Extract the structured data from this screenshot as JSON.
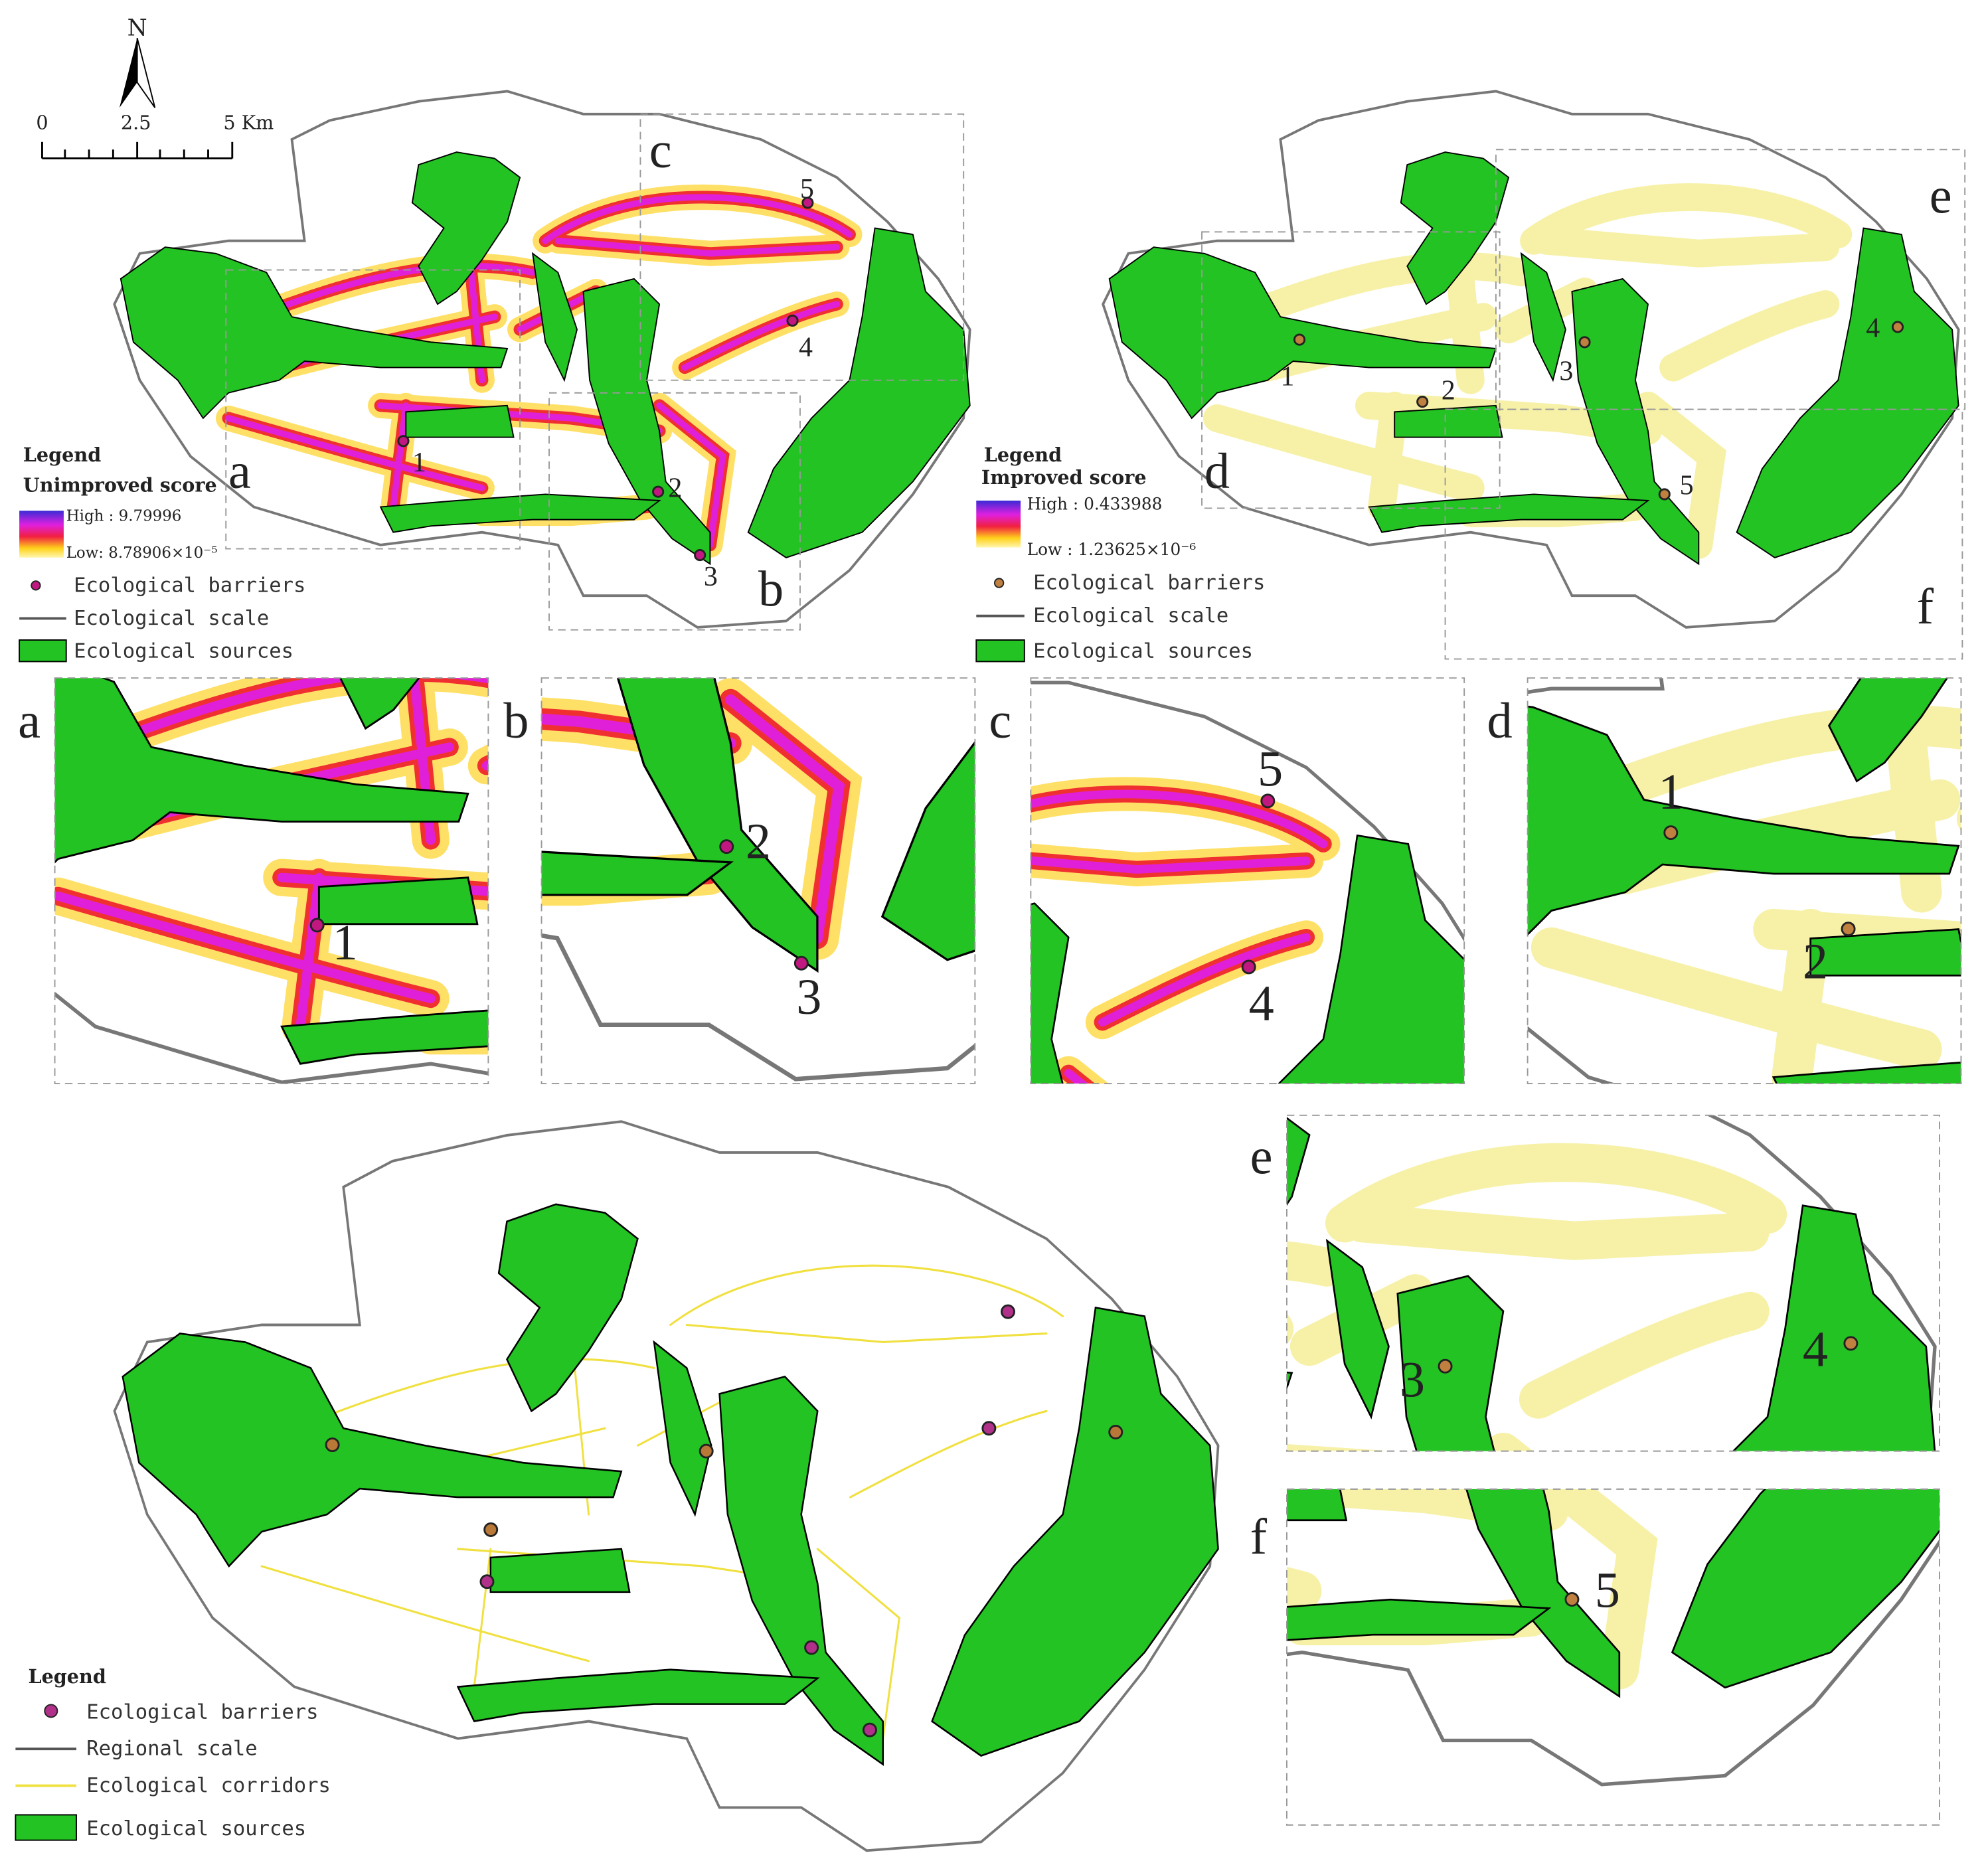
{
  "scale_bar": {
    "north": "N",
    "ticks": [
      "0",
      "2.5",
      "5 Km"
    ]
  },
  "maps": [
    {
      "panel_labels": [
        "a",
        "b",
        "c"
      ],
      "barrier_labels": [
        "1",
        "2",
        "3",
        "4",
        "5"
      ],
      "legend": {
        "title": "Legend",
        "score": "Unimproved score",
        "high": "High : 9.79996",
        "low": "Low: 8.78906×10⁻⁵",
        "items": [
          "Ecological barriers",
          "Ecological scale",
          "Ecological sources"
        ]
      }
    },
    {
      "panel_labels": [
        "d",
        "e",
        "f"
      ],
      "barrier_labels": [
        "1",
        "2",
        "3",
        "4",
        "5"
      ],
      "legend": {
        "title": "Legend",
        "score": "Improved score",
        "high": "High : 0.433988",
        "low": "Low : 1.23625×10⁻⁶",
        "items": [
          "Ecological barriers",
          "Ecological scale",
          "Ecological sources"
        ]
      }
    },
    {
      "legend": {
        "title": "Legend",
        "items": [
          "Ecological barriers",
          "Regional scale",
          "Ecological corridors",
          "Ecological sources"
        ]
      }
    }
  ],
  "insets": [
    {
      "label": "a",
      "barrier_labels": [
        "1"
      ]
    },
    {
      "label": "b",
      "barrier_labels": [
        "2",
        "3"
      ]
    },
    {
      "label": "c",
      "barrier_labels": [
        "5",
        "4"
      ]
    },
    {
      "label": "d",
      "barrier_labels": [
        "1",
        "2"
      ]
    },
    {
      "label": "e",
      "barrier_labels": [
        "3",
        "4"
      ]
    },
    {
      "label": "f",
      "barrier_labels": [
        "5"
      ]
    }
  ]
}
